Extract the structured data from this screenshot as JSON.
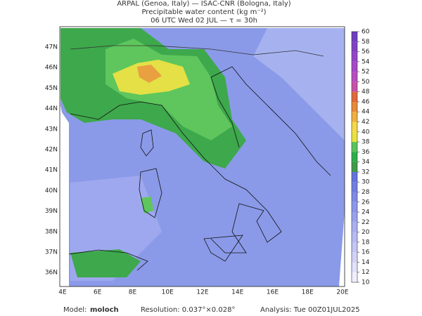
{
  "header": {
    "line1": "ARPAL (Genoa, Italy)  —  ISAC-CNR (Bologna, Italy)",
    "line2": "Precipitable water content (kg m⁻²)",
    "line3": "06 UTC Wed 02 JUL  —  τ = 30h"
  },
  "map": {
    "lat_labels": [
      "47N",
      "46N",
      "45N",
      "44N",
      "43N",
      "42N",
      "41N",
      "40N",
      "39N",
      "38N",
      "37N",
      "36N"
    ],
    "lon_labels": [
      "4E",
      "6E",
      "8E",
      "10E",
      "12E",
      "14E",
      "16E",
      "18E",
      "20E"
    ]
  },
  "colorbar": {
    "ticks": [
      10,
      12,
      14,
      16,
      18,
      20,
      22,
      24,
      26,
      28,
      30,
      32,
      34,
      36,
      38,
      40,
      42,
      44,
      46,
      48,
      50,
      52,
      54,
      56,
      58,
      60
    ],
    "colors": [
      "#f0eefc",
      "#e2e0fa",
      "#d2d2f7",
      "#c4c6f4",
      "#b6baf2",
      "#a8aef0",
      "#9aa2ee",
      "#8c96ea",
      "#7e8ae6",
      "#707ee2",
      "#6272de",
      "#3f9a4a",
      "#2cae48",
      "#58c45a",
      "#e8e240",
      "#f4d84a",
      "#f0b040",
      "#e88a38",
      "#e06838",
      "#c850a8",
      "#b84cc0",
      "#a848c8",
      "#9444c8",
      "#8040c4",
      "#6e3cc0"
    ]
  },
  "footer": {
    "model_label": "Model:",
    "model": "moloch",
    "resolution": "Resolution: 0.037°×0.028°",
    "analysis": "Analysis: Tue 00Z01JUL2025"
  }
}
